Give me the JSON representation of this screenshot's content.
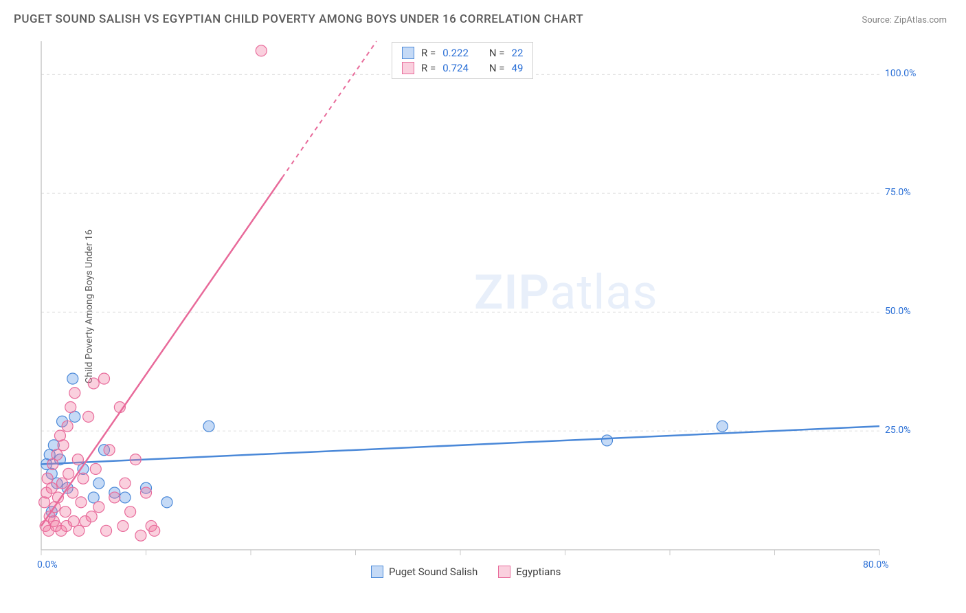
{
  "title": "PUGET SOUND SALISH VS EGYPTIAN CHILD POVERTY AMONG BOYS UNDER 16 CORRELATION CHART",
  "source": "Source: ZipAtlas.com",
  "y_axis_label": "Child Poverty Among Boys Under 16",
  "watermark": {
    "zip": "ZIP",
    "atlas": "atlas"
  },
  "chart": {
    "type": "scatter",
    "xlim": [
      0,
      80
    ],
    "ylim": [
      0,
      107
    ],
    "x_ticks": [
      0,
      10,
      20,
      30,
      40,
      50,
      60,
      70,
      80
    ],
    "x_tick_labels": {
      "0": "0.0%",
      "80": "80.0%"
    },
    "y_ticks": [
      25,
      50,
      75,
      100
    ],
    "y_tick_labels": {
      "25": "25.0%",
      "50": "50.0%",
      "75": "75.0%",
      "100": "100.0%"
    },
    "background_color": "#ffffff",
    "grid_color": "#e0e0e0",
    "axis_color": "#c8c8c8",
    "marker_radius": 8,
    "marker_opacity": 0.45,
    "series": [
      {
        "name": "Puget Sound Salish",
        "color_fill": "rgba(90,150,230,0.35)",
        "color_stroke": "#4a88d8",
        "R": "0.222",
        "N": "22",
        "trend": {
          "x1": 0,
          "y1": 18,
          "x2": 80,
          "y2": 26,
          "dash_from_x": null
        },
        "points": [
          [
            0.5,
            18
          ],
          [
            0.8,
            20
          ],
          [
            1.0,
            16
          ],
          [
            1.2,
            22
          ],
          [
            1.5,
            14
          ],
          [
            1.8,
            19
          ],
          [
            2.0,
            27
          ],
          [
            2.5,
            13
          ],
          [
            3.0,
            36
          ],
          [
            3.2,
            28
          ],
          [
            4.0,
            17
          ],
          [
            5.0,
            11
          ],
          [
            5.5,
            14
          ],
          [
            6.0,
            21
          ],
          [
            7.0,
            12
          ],
          [
            8.0,
            11
          ],
          [
            10.0,
            13
          ],
          [
            12.0,
            10
          ],
          [
            16.0,
            26
          ],
          [
            54.0,
            23
          ],
          [
            65.0,
            26
          ],
          [
            1.0,
            8
          ]
        ]
      },
      {
        "name": "Egyptians",
        "color_fill": "rgba(240,120,160,0.35)",
        "color_stroke": "#e86a9a",
        "R": "0.724",
        "N": "49",
        "trend": {
          "x1": 0,
          "y1": 5,
          "x2": 32,
          "y2": 107,
          "dash_from_x": 23
        },
        "points": [
          [
            0.3,
            10
          ],
          [
            0.5,
            12
          ],
          [
            0.6,
            15
          ],
          [
            0.8,
            7
          ],
          [
            1.0,
            13
          ],
          [
            1.1,
            18
          ],
          [
            1.3,
            9
          ],
          [
            1.5,
            20
          ],
          [
            1.6,
            11
          ],
          [
            1.8,
            24
          ],
          [
            2.0,
            14
          ],
          [
            2.1,
            22
          ],
          [
            2.3,
            8
          ],
          [
            2.5,
            26
          ],
          [
            2.6,
            16
          ],
          [
            2.8,
            30
          ],
          [
            3.0,
            12
          ],
          [
            3.2,
            33
          ],
          [
            3.5,
            19
          ],
          [
            3.8,
            10
          ],
          [
            4.0,
            15
          ],
          [
            4.2,
            6
          ],
          [
            4.5,
            28
          ],
          [
            5.0,
            35
          ],
          [
            5.2,
            17
          ],
          [
            5.5,
            9
          ],
          [
            6.0,
            36
          ],
          [
            6.5,
            21
          ],
          [
            7.0,
            11
          ],
          [
            7.5,
            30
          ],
          [
            8.0,
            14
          ],
          [
            8.5,
            8
          ],
          [
            9.0,
            19
          ],
          [
            10.0,
            12
          ],
          [
            10.5,
            5
          ],
          [
            0.4,
            5
          ],
          [
            0.7,
            4
          ],
          [
            1.2,
            6
          ],
          [
            1.4,
            5
          ],
          [
            1.9,
            4
          ],
          [
            2.4,
            5
          ],
          [
            3.1,
            6
          ],
          [
            3.6,
            4
          ],
          [
            4.8,
            7
          ],
          [
            6.2,
            4
          ],
          [
            7.8,
            5
          ],
          [
            9.5,
            3
          ],
          [
            10.8,
            4
          ],
          [
            21.0,
            105
          ]
        ]
      }
    ]
  },
  "stats_legend": {
    "rows": [
      {
        "swatch": "blue",
        "r_label": "R =",
        "r_val": "0.222",
        "n_label": "N =",
        "n_val": "22"
      },
      {
        "swatch": "pink",
        "r_label": "R =",
        "r_val": "0.724",
        "n_label": "N =",
        "n_val": "49"
      }
    ]
  },
  "bottom_legend": {
    "items": [
      {
        "swatch": "blue",
        "label": "Puget Sound Salish"
      },
      {
        "swatch": "pink",
        "label": "Egyptians"
      }
    ]
  }
}
